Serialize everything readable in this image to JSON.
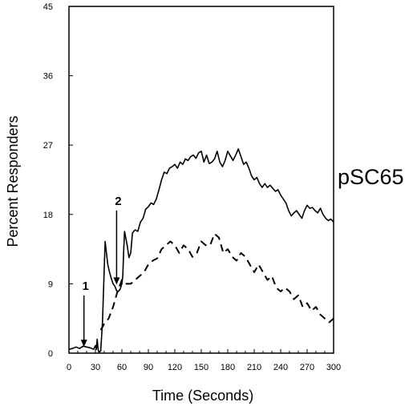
{
  "chart_data": {
    "type": "line",
    "title": "",
    "panel_label": "pSC65",
    "xlabel": "Time (Seconds)",
    "ylabel": "Percent Responders",
    "xlim": [
      0,
      300
    ],
    "ylim": [
      0,
      45
    ],
    "x_ticks": [
      "0",
      "10",
      "20",
      "30",
      "40",
      "50",
      "60",
      "70",
      "80",
      "90",
      "100",
      "110",
      "120",
      "130",
      "140",
      "150",
      "160",
      "170",
      "180",
      "190",
      "200",
      "210",
      "220",
      "230",
      "240",
      "250",
      "260",
      "270",
      "280",
      "290",
      "300"
    ],
    "x_tick_labels": [
      "0",
      "30",
      "60",
      "90",
      "120",
      "150",
      "180",
      "210",
      "240",
      "270",
      "300"
    ],
    "y_ticks": [
      "0",
      "9",
      "18",
      "27",
      "36",
      "45"
    ],
    "grid": false,
    "series": [
      {
        "style": "solid",
        "x": [
          0,
          4,
          8,
          12,
          16,
          20,
          24,
          28,
          30,
          31,
          32,
          33,
          34,
          36,
          38,
          40,
          41,
          42,
          43,
          44,
          46,
          48,
          50,
          52,
          54,
          56,
          58,
          60,
          61,
          62,
          63,
          64,
          66,
          68,
          70,
          72,
          75,
          78,
          81,
          84,
          87,
          90,
          93,
          96,
          99,
          102,
          105,
          108,
          111,
          114,
          117,
          120,
          123,
          126,
          129,
          132,
          135,
          138,
          141,
          144,
          147,
          150,
          153,
          156,
          159,
          162,
          165,
          168,
          171,
          174,
          177,
          180,
          183,
          186,
          189,
          192,
          195,
          198,
          201,
          204,
          207,
          210,
          213,
          216,
          219,
          222,
          225,
          228,
          231,
          234,
          237,
          240,
          243,
          246,
          249,
          252,
          255,
          258,
          261,
          264,
          267,
          270,
          273,
          276,
          279,
          282,
          285,
          288,
          291,
          294,
          297,
          300
        ],
        "y": [
          0.5,
          0.6,
          0.8,
          0.6,
          0.9,
          0.8,
          0.7,
          0.5,
          1.0,
          0.5,
          1.8,
          0.5,
          0.1,
          0.3,
          4.0,
          11.0,
          14.5,
          13.5,
          12.5,
          11.5,
          10.5,
          9.7,
          9.0,
          8.7,
          8.1,
          8.0,
          8.3,
          9.0,
          10.0,
          13.2,
          15.8,
          15.2,
          14.0,
          12.4,
          13.0,
          15.6,
          16.0,
          15.8,
          17.0,
          17.5,
          18.7,
          19.0,
          19.5,
          19.3,
          20.0,
          21.2,
          22.5,
          23.5,
          23.3,
          24.0,
          24.2,
          24.5,
          24.0,
          24.8,
          24.5,
          25.2,
          25.0,
          25.5,
          25.7,
          25.3,
          26.0,
          26.2,
          24.8,
          25.7,
          24.6,
          24.8,
          25.2,
          26.2,
          24.8,
          24.2,
          25.0,
          26.2,
          25.6,
          25.0,
          25.7,
          26.5,
          25.5,
          24.5,
          24.8,
          24.0,
          23.0,
          22.5,
          22.8,
          22.0,
          21.5,
          22.0,
          21.5,
          21.8,
          21.4,
          21.0,
          21.2,
          20.5,
          20.0,
          19.5,
          18.5,
          17.8,
          18.2,
          18.5,
          18.0,
          17.5,
          18.5,
          19.2,
          18.8,
          18.9,
          18.5,
          18.2,
          18.8,
          18.0,
          17.5,
          17.2,
          17.4,
          17.0
        ]
      },
      {
        "style": "dashed",
        "x": [
          36,
          40,
          45,
          50,
          55,
          60,
          65,
          70,
          75,
          80,
          85,
          90,
          95,
          100,
          105,
          110,
          115,
          120,
          125,
          130,
          135,
          140,
          145,
          150,
          155,
          160,
          165,
          170,
          175,
          180,
          185,
          190,
          195,
          200,
          205,
          210,
          215,
          220,
          225,
          230,
          235,
          240,
          245,
          250,
          255,
          260,
          265,
          270,
          275,
          280,
          285,
          290,
          295,
          300
        ],
        "y": [
          3.0,
          3.8,
          4.5,
          6.0,
          8.0,
          9.5,
          9.0,
          9.0,
          9.5,
          10.0,
          10.5,
          11.5,
          12.0,
          12.3,
          13.5,
          14.0,
          14.5,
          14.0,
          13.0,
          14.0,
          13.5,
          12.5,
          13.0,
          14.5,
          14.0,
          14.0,
          15.5,
          15.0,
          13.0,
          13.5,
          12.5,
          12.0,
          13.0,
          12.5,
          11.5,
          10.5,
          11.5,
          10.5,
          9.5,
          10.0,
          8.5,
          8.0,
          8.5,
          8.0,
          7.0,
          7.5,
          6.0,
          6.5,
          5.5,
          6.0,
          5.0,
          4.5,
          4.0,
          4.5
        ]
      }
    ],
    "annotations": [
      {
        "text": "1",
        "x": 17,
        "y_top": 7.5,
        "y_tip": 0.8
      },
      {
        "text": "2",
        "x": 54,
        "y_top": 18.5,
        "y_tip": 8.9
      }
    ]
  }
}
